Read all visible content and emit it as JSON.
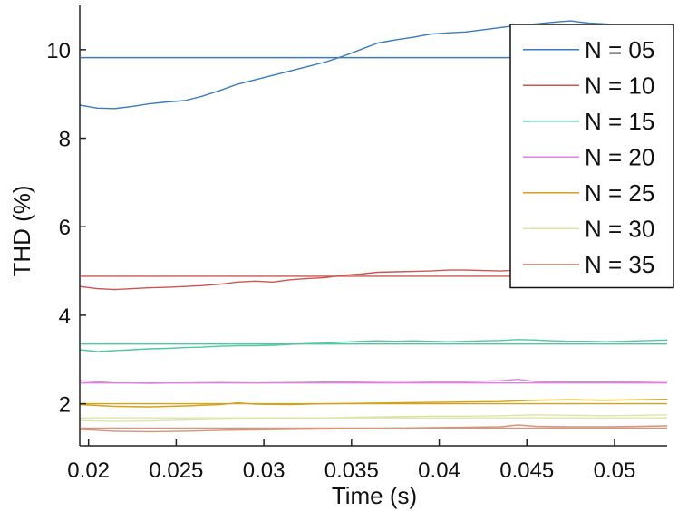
{
  "chart_data": {
    "type": "line",
    "title": "",
    "xlabel": "Time (s)",
    "ylabel": "THD (%)",
    "xlim": [
      0.0195,
      0.053
    ],
    "ylim": [
      1.05,
      11.0
    ],
    "x_ticks": [
      0.02,
      0.025,
      0.03,
      0.035,
      0.04,
      0.045,
      0.05
    ],
    "x_tick_labels": [
      "0.02",
      "0.025",
      "0.03",
      "0.035",
      "0.04",
      "0.045",
      "0.05"
    ],
    "y_ticks": [
      2,
      4,
      6,
      8,
      10
    ],
    "y_tick_labels": [
      "2",
      "4",
      "6",
      "8",
      "10"
    ],
    "grid": false,
    "legend_position": "top-right",
    "series": [
      {
        "name": "N = 05",
        "color": "#3b7bbf",
        "mean": 9.82,
        "x": [
          0.0195,
          0.0205,
          0.0215,
          0.0225,
          0.0235,
          0.0245,
          0.0255,
          0.0265,
          0.0275,
          0.0285,
          0.0295,
          0.0305,
          0.0315,
          0.0325,
          0.0335,
          0.0345,
          0.0355,
          0.0365,
          0.0375,
          0.0385,
          0.0395,
          0.0405,
          0.0415,
          0.0425,
          0.0435,
          0.0445,
          0.0455,
          0.0465,
          0.0475,
          0.0485,
          0.0495,
          0.0505,
          0.053
        ],
        "y": [
          8.75,
          8.68,
          8.67,
          8.72,
          8.78,
          8.82,
          8.85,
          8.95,
          9.08,
          9.22,
          9.32,
          9.42,
          9.52,
          9.62,
          9.72,
          9.85,
          10.0,
          10.15,
          10.22,
          10.28,
          10.35,
          10.38,
          10.4,
          10.45,
          10.5,
          10.55,
          10.58,
          10.62,
          10.65,
          10.6,
          10.58,
          10.55,
          10.52
        ]
      },
      {
        "name": "N = 10",
        "color": "#cc5650",
        "mean": 4.88,
        "x": [
          0.0195,
          0.0205,
          0.0215,
          0.0225,
          0.0235,
          0.0245,
          0.0255,
          0.0265,
          0.0275,
          0.0285,
          0.0295,
          0.0305,
          0.0315,
          0.0325,
          0.0335,
          0.0345,
          0.0355,
          0.0365,
          0.0375,
          0.0385,
          0.0395,
          0.0405,
          0.0415,
          0.0425,
          0.0435,
          0.0445,
          0.0455,
          0.0465,
          0.0475,
          0.0485,
          0.0495,
          0.0505,
          0.053
        ],
        "y": [
          4.65,
          4.6,
          4.58,
          4.6,
          4.62,
          4.63,
          4.65,
          4.67,
          4.7,
          4.75,
          4.77,
          4.75,
          4.8,
          4.83,
          4.85,
          4.9,
          4.93,
          4.97,
          4.98,
          4.99,
          5.0,
          5.02,
          5.02,
          5.01,
          5.0,
          5.02,
          5.05,
          5.05,
          5.06,
          5.04,
          5.03,
          5.02,
          5.0
        ]
      },
      {
        "name": "N = 15",
        "color": "#4fc9a0",
        "mean": 3.35,
        "x": [
          0.0195,
          0.0205,
          0.0215,
          0.0225,
          0.0235,
          0.0245,
          0.0255,
          0.0265,
          0.0275,
          0.0285,
          0.0295,
          0.0305,
          0.0315,
          0.0325,
          0.0335,
          0.0345,
          0.0355,
          0.0365,
          0.0375,
          0.0385,
          0.0395,
          0.0405,
          0.0415,
          0.0425,
          0.0435,
          0.0445,
          0.0455,
          0.0465,
          0.0475,
          0.0485,
          0.0495,
          0.0505,
          0.053
        ],
        "y": [
          3.22,
          3.18,
          3.2,
          3.22,
          3.24,
          3.25,
          3.27,
          3.28,
          3.3,
          3.31,
          3.31,
          3.32,
          3.34,
          3.36,
          3.37,
          3.39,
          3.41,
          3.42,
          3.41,
          3.42,
          3.41,
          3.4,
          3.41,
          3.42,
          3.43,
          3.45,
          3.44,
          3.42,
          3.41,
          3.41,
          3.4,
          3.41,
          3.44
        ]
      },
      {
        "name": "N = 20",
        "color": "#d688d6",
        "mean": 2.47,
        "x": [
          0.0195,
          0.0215,
          0.0235,
          0.0255,
          0.0275,
          0.0295,
          0.0315,
          0.0335,
          0.0355,
          0.0375,
          0.0395,
          0.0415,
          0.0435,
          0.0445,
          0.0455,
          0.0475,
          0.0495,
          0.0515,
          0.053
        ],
        "y": [
          2.52,
          2.47,
          2.46,
          2.47,
          2.48,
          2.47,
          2.48,
          2.49,
          2.5,
          2.51,
          2.5,
          2.5,
          2.52,
          2.55,
          2.5,
          2.49,
          2.49,
          2.5,
          2.51
        ]
      },
      {
        "name": "N = 25",
        "color": "#d4a21c",
        "mean": 2.0,
        "x": [
          0.0195,
          0.0215,
          0.0235,
          0.0255,
          0.0275,
          0.0285,
          0.0295,
          0.0315,
          0.0335,
          0.0355,
          0.0375,
          0.0395,
          0.0415,
          0.0435,
          0.0455,
          0.0475,
          0.0495,
          0.0515,
          0.053
        ],
        "y": [
          1.98,
          1.94,
          1.93,
          1.95,
          1.98,
          2.02,
          1.99,
          1.98,
          2.0,
          2.01,
          2.02,
          2.03,
          2.04,
          2.05,
          2.08,
          2.09,
          2.08,
          2.09,
          2.1
        ]
      },
      {
        "name": "N = 30",
        "color": "#d9e6a8",
        "mean": 1.68,
        "x": [
          0.0195,
          0.0215,
          0.0235,
          0.0255,
          0.0275,
          0.0295,
          0.0315,
          0.0335,
          0.0355,
          0.0375,
          0.0395,
          0.0415,
          0.0435,
          0.0455,
          0.0475,
          0.0495,
          0.0515,
          0.053
        ],
        "y": [
          1.62,
          1.6,
          1.61,
          1.63,
          1.65,
          1.66,
          1.67,
          1.68,
          1.7,
          1.71,
          1.72,
          1.72,
          1.73,
          1.75,
          1.74,
          1.73,
          1.74,
          1.75
        ]
      },
      {
        "name": "N = 35",
        "color": "#d9947a",
        "mean": 1.45,
        "x": [
          0.0195,
          0.0215,
          0.0235,
          0.0255,
          0.0275,
          0.0295,
          0.0315,
          0.0335,
          0.0355,
          0.0375,
          0.0395,
          0.0415,
          0.0435,
          0.0445,
          0.0455,
          0.0475,
          0.0495,
          0.0515,
          0.053
        ],
        "y": [
          1.42,
          1.38,
          1.37,
          1.38,
          1.4,
          1.41,
          1.42,
          1.43,
          1.44,
          1.45,
          1.46,
          1.47,
          1.48,
          1.52,
          1.49,
          1.48,
          1.48,
          1.49,
          1.5
        ]
      }
    ]
  }
}
